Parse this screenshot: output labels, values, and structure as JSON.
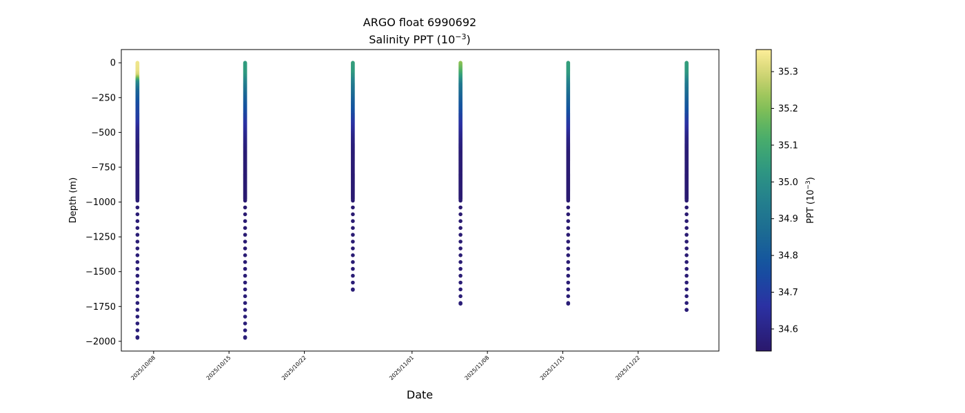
{
  "chart_data": {
    "type": "scatter",
    "title": "ARGO float 6990692",
    "subtitle_prefix": "Salinity PPT (10",
    "subtitle_exp": "−3",
    "subtitle_suffix": ")",
    "xlabel": "Date",
    "ylabel": "Depth (m)",
    "xlim": [
      "2025-10-05T00:00",
      "2025-11-29T12:00"
    ],
    "ylim": [
      -2070,
      95
    ],
    "y_ticks": [
      0,
      -250,
      -500,
      -750,
      -1000,
      -1250,
      -1500,
      -1750,
      -2000
    ],
    "y_tick_labels": [
      "0",
      "−250",
      "−500",
      "−750",
      "−1000",
      "−1250",
      "−1500",
      "−1750",
      "−2000"
    ],
    "x_ticks": [
      "2025-10-08",
      "2025-10-15",
      "2025-10-22",
      "2025-11-01",
      "2025-11-08",
      "2025-11-15",
      "2025-11-22"
    ],
    "x_tick_labels": [
      "2025/10/08",
      "2025/10/15",
      "2025/10/22",
      "2025/11/01",
      "2025/11/08",
      "2025/11/15",
      "2025/11/22"
    ],
    "colorbar": {
      "label_prefix": "PPT (10",
      "label_exp": "−3",
      "label_suffix": ")",
      "vmin": 34.54,
      "vmax": 35.36,
      "ticks": [
        34.6,
        34.7,
        34.8,
        34.9,
        35.0,
        35.1,
        35.2,
        35.3
      ],
      "tick_labels": [
        "34.6",
        "34.7",
        "34.8",
        "34.9",
        "35.0",
        "35.1",
        "35.2",
        "35.3"
      ],
      "colormap": "haline"
    },
    "grid": false,
    "legend": "none",
    "profiles": [
      {
        "date": "2025-10-06T12:00",
        "max_depth": -1975,
        "salinity_profile": [
          [
            0,
            35.34
          ],
          [
            -60,
            35.33
          ],
          [
            -90,
            35.3
          ],
          [
            -110,
            35.2
          ],
          [
            -140,
            35.0
          ],
          [
            -200,
            34.85
          ],
          [
            -300,
            34.75
          ],
          [
            -400,
            34.7
          ],
          [
            -480,
            34.62
          ],
          [
            -600,
            34.57
          ],
          [
            -1000,
            34.56
          ],
          [
            -2000,
            34.57
          ]
        ]
      },
      {
        "date": "2025-10-16T12:00",
        "max_depth": -1975,
        "salinity_profile": [
          [
            0,
            35.05
          ],
          [
            -80,
            35.04
          ],
          [
            -150,
            34.95
          ],
          [
            -250,
            34.83
          ],
          [
            -350,
            34.75
          ],
          [
            -450,
            34.66
          ],
          [
            -550,
            34.6
          ],
          [
            -650,
            34.56
          ],
          [
            -1000,
            34.55
          ],
          [
            -2000,
            34.57
          ]
        ]
      },
      {
        "date": "2025-10-26T12:00",
        "max_depth": -1630,
        "salinity_profile": [
          [
            0,
            35.06
          ],
          [
            -70,
            35.04
          ],
          [
            -140,
            34.95
          ],
          [
            -250,
            34.84
          ],
          [
            -350,
            34.76
          ],
          [
            -450,
            34.66
          ],
          [
            -550,
            34.59
          ],
          [
            -650,
            34.56
          ],
          [
            -1000,
            34.55
          ],
          [
            -2000,
            34.57
          ]
        ]
      },
      {
        "date": "2025-11-05T12:00",
        "max_depth": -1730,
        "salinity_profile": [
          [
            0,
            35.22
          ],
          [
            -50,
            35.15
          ],
          [
            -100,
            35.05
          ],
          [
            -160,
            34.92
          ],
          [
            -250,
            34.83
          ],
          [
            -350,
            34.75
          ],
          [
            -450,
            34.66
          ],
          [
            -550,
            34.6
          ],
          [
            -650,
            34.56
          ],
          [
            -1000,
            34.55
          ],
          [
            -2000,
            34.57
          ]
        ]
      },
      {
        "date": "2025-11-15T12:00",
        "max_depth": -1730,
        "salinity_profile": [
          [
            0,
            35.06
          ],
          [
            -80,
            35.04
          ],
          [
            -150,
            34.95
          ],
          [
            -250,
            34.85
          ],
          [
            -350,
            34.77
          ],
          [
            -450,
            34.68
          ],
          [
            -550,
            34.6
          ],
          [
            -650,
            34.56
          ],
          [
            -1000,
            34.55
          ],
          [
            -2000,
            34.57
          ]
        ]
      },
      {
        "date": "2025-11-26T12:00",
        "max_depth": -1775,
        "salinity_profile": [
          [
            0,
            35.06
          ],
          [
            -80,
            35.03
          ],
          [
            -150,
            34.93
          ],
          [
            -250,
            34.84
          ],
          [
            -350,
            34.76
          ],
          [
            -450,
            34.66
          ],
          [
            -550,
            34.59
          ],
          [
            -650,
            34.56
          ],
          [
            -1000,
            34.55
          ],
          [
            -2000,
            34.57
          ]
        ]
      }
    ]
  }
}
